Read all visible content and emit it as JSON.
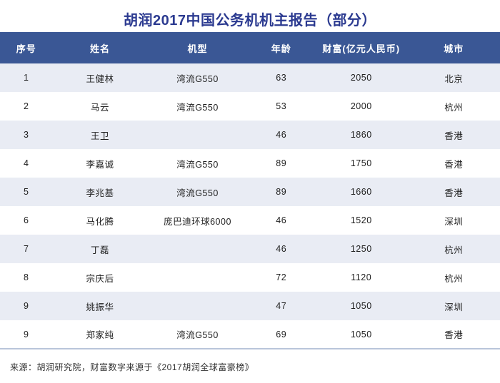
{
  "title": "胡润2017中国公务机机主报告（部分）",
  "colors": {
    "title_text": "#2b3a90",
    "header_bg": "#3a5795",
    "header_text": "#ffffff",
    "row_stripe": "#e9ecf4",
    "row_white": "#ffffff",
    "bottom_rule": "#b9c5da",
    "body_text": "#1f1f1f"
  },
  "table": {
    "headers": [
      "序号",
      "姓名",
      "机型",
      "年龄",
      "财富(亿元人民币)",
      "城市"
    ],
    "rows": [
      {
        "no": "1",
        "name": "王健林",
        "model": "湾流G550",
        "age": "63",
        "wealth": "2050",
        "city": "北京"
      },
      {
        "no": "2",
        "name": "马云",
        "model": "湾流G550",
        "age": "53",
        "wealth": "2000",
        "city": "杭州"
      },
      {
        "no": "3",
        "name": "王卫",
        "model": "",
        "age": "46",
        "wealth": "1860",
        "city": "香港"
      },
      {
        "no": "4",
        "name": "李嘉诚",
        "model": "湾流G550",
        "age": "89",
        "wealth": "1750",
        "city": "香港"
      },
      {
        "no": "5",
        "name": "李兆基",
        "model": "湾流G550",
        "age": "89",
        "wealth": "1660",
        "city": "香港"
      },
      {
        "no": "6",
        "name": "马化腾",
        "model": "庞巴迪环球6000",
        "age": "46",
        "wealth": "1520",
        "city": "深圳"
      },
      {
        "no": "7",
        "name": "丁磊",
        "model": "",
        "age": "46",
        "wealth": "1250",
        "city": "杭州"
      },
      {
        "no": "8",
        "name": "宗庆后",
        "model": "",
        "age": "72",
        "wealth": "1120",
        "city": "杭州"
      },
      {
        "no": "9",
        "name": "姚振华",
        "model": "",
        "age": "47",
        "wealth": "1050",
        "city": "深圳"
      },
      {
        "no": "9",
        "name": "郑家纯",
        "model": "湾流G550",
        "age": "69",
        "wealth": "1050",
        "city": "香港"
      }
    ]
  },
  "footer": {
    "source": "来源：胡润研究院，财富数字来源于《2017胡润全球富豪榜》"
  },
  "chart_data": {
    "type": "table",
    "title": "胡润2017中国公务机机主报告（部分）",
    "columns": [
      "序号",
      "姓名",
      "机型",
      "年龄",
      "财富(亿元人民币)",
      "城市"
    ],
    "rows": [
      [
        "1",
        "王健林",
        "湾流G550",
        63,
        2050,
        "北京"
      ],
      [
        "2",
        "马云",
        "湾流G550",
        53,
        2000,
        "杭州"
      ],
      [
        "3",
        "王卫",
        "",
        46,
        1860,
        "香港"
      ],
      [
        "4",
        "李嘉诚",
        "湾流G550",
        89,
        1750,
        "香港"
      ],
      [
        "5",
        "李兆基",
        "湾流G550",
        89,
        1660,
        "香港"
      ],
      [
        "6",
        "马化腾",
        "庞巴迪环球6000",
        46,
        1520,
        "深圳"
      ],
      [
        "7",
        "丁磊",
        "",
        46,
        1250,
        "杭州"
      ],
      [
        "8",
        "宗庆后",
        "",
        72,
        1120,
        "杭州"
      ],
      [
        "9",
        "姚振华",
        "",
        47,
        1050,
        "深圳"
      ],
      [
        "9",
        "郑家纯",
        "湾流G550",
        69,
        1050,
        "香港"
      ]
    ],
    "annotations": [
      "来源：胡润研究院，财富数字来源于《2017胡润全球富豪榜》"
    ]
  }
}
